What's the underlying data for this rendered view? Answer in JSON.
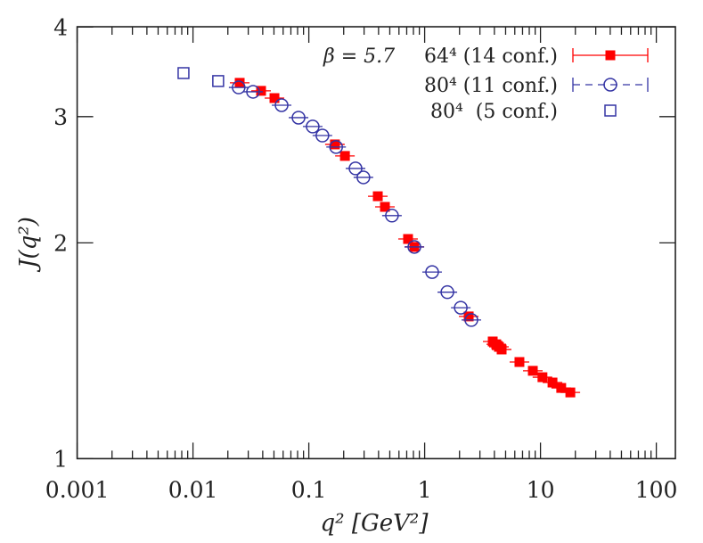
{
  "chart_data": {
    "type": "scatter",
    "xscale": "log",
    "yscale": "log",
    "xlim": [
      0.001,
      150
    ],
    "ylim": [
      1,
      4
    ],
    "xlabel": "q² [GeV²]",
    "ylabel": "J(q²)",
    "xticks": [
      0.001,
      0.01,
      0.1,
      1,
      10,
      100
    ],
    "xtick_labels": [
      "0.001",
      "0.01",
      "0.1",
      "1",
      "10",
      "100"
    ],
    "yticks": [
      1,
      2,
      3,
      4
    ],
    "ytick_labels": [
      "1",
      "2",
      "3",
      "4"
    ],
    "grid": false,
    "legend_placement": "top-right",
    "legend_title": "β = 5.7",
    "series": [
      {
        "name": "64⁴ (14 conf.)",
        "marker": "filled-square",
        "color": "#ff0000",
        "line_style": "solid",
        "x": [
          0.0253,
          0.0387,
          0.0505,
          0.168,
          0.205,
          0.394,
          0.454,
          0.719,
          0.815,
          2.4,
          3.87,
          4.15,
          4.38,
          4.62,
          6.58,
          8.59,
          10.4,
          12.7,
          15.1,
          18.1
        ],
        "y": [
          3.344,
          3.259,
          3.184,
          2.744,
          2.644,
          2.323,
          2.245,
          2.025,
          1.974,
          1.579,
          1.457,
          1.444,
          1.432,
          1.42,
          1.364,
          1.326,
          1.299,
          1.277,
          1.255,
          1.237
        ]
      },
      {
        "name": "80⁴ (11 conf.)",
        "marker": "open-circle",
        "color": "#3434a4",
        "line_style": "dashed",
        "x": [
          0.0248,
          0.033,
          0.0582,
          0.0815,
          0.108,
          0.131,
          0.172,
          0.253,
          0.296,
          0.522,
          0.815,
          1.16,
          1.57,
          2.05,
          2.53
        ],
        "y": [
          3.295,
          3.249,
          3.112,
          2.99,
          2.906,
          2.823,
          2.721,
          2.54,
          2.468,
          2.183,
          1.974,
          1.821,
          1.707,
          1.624,
          1.561
        ]
      },
      {
        "name": "80⁴  (5 conf.)",
        "marker": "open-square",
        "color": "#3434a4",
        "line_style": "none",
        "x": [
          0.00828,
          0.0165
        ],
        "y": [
          3.45,
          3.363
        ]
      }
    ]
  }
}
